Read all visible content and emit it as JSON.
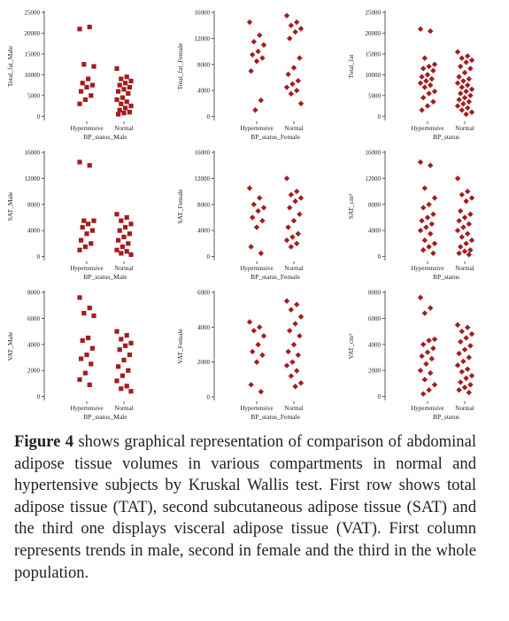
{
  "chart_data": [
    {
      "type": "strip",
      "marker": "square",
      "color": "#a31d1d",
      "y_label": "Total_fat_Male",
      "x_label": "BP_status_Male",
      "categories": [
        "Hypertensive",
        "Normal"
      ],
      "ylim": [
        -1000,
        25000
      ],
      "yticks": [
        0,
        5000,
        10000,
        15000,
        20000,
        25000
      ],
      "values": [
        [
          21000,
          21500,
          12500,
          12000,
          9000,
          8000,
          7500,
          7000,
          6000,
          5000,
          4000,
          3000
        ],
        [
          11500,
          9500,
          9000,
          8500,
          8000,
          7500,
          7000,
          6500,
          6000,
          5500,
          4500,
          4000,
          3500,
          3000,
          2500,
          2000,
          1500,
          1000,
          800,
          500
        ]
      ]
    },
    {
      "type": "strip",
      "marker": "diamond",
      "color": "#a31d1d",
      "y_label": "Total_fat_Female",
      "x_label": "BP_status_Female",
      "categories": [
        "Hypertensive",
        "Normal"
      ],
      "ylim": [
        -600,
        16000
      ],
      "yticks": [
        0,
        4000,
        8000,
        12000,
        16000
      ],
      "values": [
        [
          14500,
          12500,
          11500,
          11000,
          10000,
          9500,
          9000,
          8500,
          7000,
          2500,
          1000
        ],
        [
          15500,
          14500,
          14000,
          13500,
          13000,
          12000,
          9000,
          7500,
          6500,
          5500,
          5000,
          4500,
          4000,
          3500,
          2000
        ]
      ]
    },
    {
      "type": "strip",
      "marker": "diamond",
      "color": "#a31d1d",
      "y_label": "Total_fat",
      "x_label": "BP_status",
      "categories": [
        "Hypertensive",
        "Normal"
      ],
      "ylim": [
        -1000,
        25000
      ],
      "yticks": [
        0,
        5000,
        10000,
        15000,
        20000,
        25000
      ],
      "values": [
        [
          21000,
          20500,
          14000,
          12500,
          12000,
          11500,
          11000,
          10000,
          9500,
          9000,
          8500,
          8000,
          7500,
          7000,
          6000,
          5500,
          4500,
          3500,
          2500,
          1500
        ],
        [
          15500,
          14500,
          14000,
          13500,
          13000,
          12000,
          11500,
          10500,
          9500,
          9000,
          8500,
          8000,
          7500,
          7000,
          6500,
          6000,
          5500,
          5000,
          4500,
          4000,
          3500,
          3000,
          2500,
          2000,
          1500,
          1000,
          500
        ]
      ]
    },
    {
      "type": "strip",
      "marker": "square",
      "color": "#a31d1d",
      "y_label": "SAT_Male",
      "x_label": "BP_status_Male",
      "categories": [
        "Hypertensive",
        "Normal"
      ],
      "ylim": [
        -600,
        16000
      ],
      "yticks": [
        0,
        4000,
        8000,
        12000,
        16000
      ],
      "values": [
        [
          14500,
          14000,
          5500,
          5500,
          5000,
          4500,
          4000,
          3500,
          2500,
          2000,
          1500,
          1000
        ],
        [
          6500,
          6000,
          5500,
          5000,
          4500,
          4000,
          3500,
          3000,
          2500,
          2000,
          1500,
          1000,
          800,
          500,
          300
        ]
      ]
    },
    {
      "type": "strip",
      "marker": "diamond",
      "color": "#a31d1d",
      "y_label": "SAT_Female",
      "x_label": "BP_status_Female",
      "categories": [
        "Hypertensive",
        "Normal"
      ],
      "ylim": [
        -600,
        16000
      ],
      "yticks": [
        0,
        4000,
        8000,
        12000,
        16000
      ],
      "values": [
        [
          10500,
          9000,
          8000,
          7500,
          7000,
          6000,
          5500,
          4500,
          1500,
          500
        ],
        [
          12000,
          10000,
          9500,
          9000,
          8500,
          7500,
          6500,
          5500,
          4500,
          3500,
          3000,
          2500,
          2000,
          1500
        ]
      ]
    },
    {
      "type": "strip",
      "marker": "diamond",
      "color": "#a31d1d",
      "y_label": "SAT_cm³",
      "x_label": "BP_status",
      "categories": [
        "Hypertensive",
        "Normal"
      ],
      "ylim": [
        -600,
        16000
      ],
      "yticks": [
        0,
        4000,
        8000,
        12000,
        16000
      ],
      "values": [
        [
          14500,
          14000,
          10500,
          9000,
          8000,
          7500,
          6500,
          6000,
          5500,
          5000,
          4500,
          4000,
          3500,
          2500,
          2000,
          1500,
          1000,
          500
        ],
        [
          12000,
          10000,
          9500,
          9000,
          8500,
          7000,
          6500,
          6000,
          5500,
          5000,
          4500,
          4000,
          3500,
          3000,
          2500,
          2000,
          1500,
          1000,
          800,
          500,
          300
        ]
      ]
    },
    {
      "type": "strip",
      "marker": "square",
      "color": "#a31d1d",
      "y_label": "VAT_Male",
      "x_label": "BP_status_Male",
      "categories": [
        "Hypertensive",
        "Normal"
      ],
      "ylim": [
        -300,
        8000
      ],
      "yticks": [
        0,
        2000,
        4000,
        6000,
        8000
      ],
      "values": [
        [
          7600,
          6800,
          6400,
          6200,
          4500,
          4300,
          3700,
          3200,
          2900,
          2500,
          1800,
          1300,
          900
        ],
        [
          5000,
          4700,
          4400,
          4100,
          3900,
          3600,
          3200,
          2800,
          2300,
          2000,
          1600,
          1200,
          800,
          600,
          400
        ]
      ]
    },
    {
      "type": "strip",
      "marker": "diamond",
      "color": "#a31d1d",
      "y_label": "VAT_Female",
      "x_label": "BP_status_Female",
      "categories": [
        "Hypertensive",
        "Normal"
      ],
      "ylim": [
        -200,
        6000
      ],
      "yticks": [
        0,
        2000,
        4000,
        6000
      ],
      "values": [
        [
          4300,
          4000,
          3800,
          3500,
          3000,
          2600,
          2400,
          2000,
          700,
          300
        ],
        [
          5500,
          5300,
          5000,
          4600,
          4200,
          3800,
          3500,
          3000,
          2600,
          2400,
          2000,
          1800,
          1500,
          1200,
          800,
          600
        ]
      ]
    },
    {
      "type": "strip",
      "marker": "diamond",
      "color": "#a31d1d",
      "y_label": "VAT_cm³",
      "x_label": "BP_status",
      "categories": [
        "Hypertensive",
        "Normal"
      ],
      "ylim": [
        -300,
        8000
      ],
      "yticks": [
        0,
        2000,
        4000,
        6000,
        8000
      ],
      "values": [
        [
          7600,
          6800,
          6400,
          4400,
          4300,
          4000,
          3700,
          3400,
          3100,
          2900,
          2500,
          2000,
          1800,
          1300,
          900,
          500,
          200
        ],
        [
          5500,
          5300,
          5000,
          4800,
          4500,
          4200,
          3900,
          3600,
          3300,
          3000,
          2700,
          2400,
          2100,
          1900,
          1600,
          1400,
          1100,
          900,
          700,
          500,
          300
        ]
      ]
    }
  ],
  "caption": {
    "label": "Figure 4",
    "text": "shows graphical representation of comparison of abdominal adipose tissue volumes in various compartments in normal and hypertensive subjects by Kruskal Wallis test. First row shows total adipose tissue (TAT), second subcutaneous adipose tissue (SAT) and the third one displays visceral adipose tissue (VAT). First column represents trends in male, second in female and the third in the whole population."
  }
}
